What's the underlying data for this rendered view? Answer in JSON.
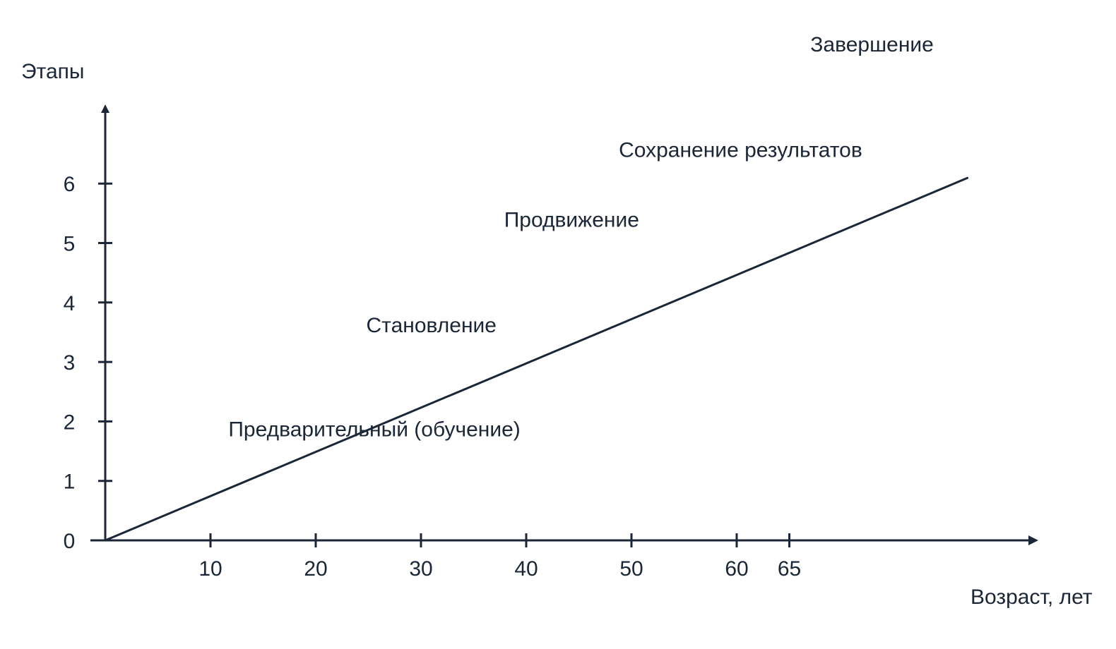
{
  "chart_data": {
    "type": "line",
    "title": "",
    "ylabel": "Этапы",
    "xlabel": "Возраст, лет",
    "x_ticks": [
      {
        "value": 10,
        "label": "10"
      },
      {
        "value": 20,
        "label": "20"
      },
      {
        "value": 30,
        "label": "30"
      },
      {
        "value": 40,
        "label": "40"
      },
      {
        "value": 50,
        "label": "50"
      },
      {
        "value": 60,
        "label": "60"
      },
      {
        "value": 65,
        "label": "65"
      }
    ],
    "y_ticks": [
      {
        "value": 0,
        "label": "0"
      },
      {
        "value": 1,
        "label": "1"
      },
      {
        "value": 2,
        "label": "2"
      },
      {
        "value": 3,
        "label": "3"
      },
      {
        "value": 4,
        "label": "4"
      },
      {
        "value": 5,
        "label": "5"
      },
      {
        "value": 6,
        "label": "6"
      }
    ],
    "series": [
      {
        "points": [
          {
            "x": 0,
            "y": 0
          },
          {
            "x": 82,
            "y": 6.1
          }
        ]
      }
    ],
    "stage_labels": [
      {
        "text": "Предварительный (обучение)",
        "x": 11.7,
        "y": 1.75
      },
      {
        "text": "Становление",
        "x": 24.8,
        "y": 3.5
      },
      {
        "text": "Продвижение",
        "x": 37.9,
        "y": 5.27
      },
      {
        "text": "Сохранение результатов",
        "x": 48.8,
        "y": 6.45
      },
      {
        "text": "Завершение",
        "x": 67,
        "y": 8.22
      }
    ],
    "xlim": [
      0,
      88
    ],
    "ylim": [
      0,
      7.2
    ],
    "grid": false,
    "colors": {
      "ink": "#1b2636",
      "background": "#ffffff"
    }
  }
}
